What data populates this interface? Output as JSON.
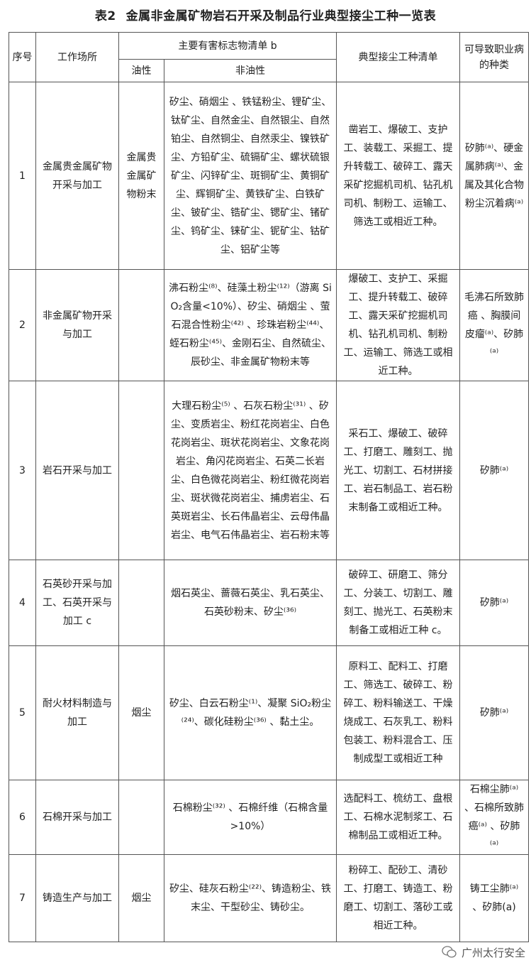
{
  "title": {
    "number": "表2",
    "text": "金属非金属矿物岩石开采及制品行业典型接尘工种一览表"
  },
  "headers": {
    "seq": "序号",
    "workplace": "工作场所",
    "markers": "主要有害标志物清单 b",
    "oily": "油性",
    "non_oily": "非油性",
    "jobs": "典型接尘工种清单",
    "diseases": "可导致职业病的种类"
  },
  "rows": [
    {
      "seq": "1",
      "workplace": "金属贵金属矿物开采与加工",
      "oily": "金属贵金属矿物粉末",
      "non_oily": "矽尘、硝烟尘 、铁锰粉尘、锂矿尘、钛矿尘、自然金尘、自然银尘、自然铂尘、自然铜尘、自然汞尘、镍铁矿尘、方铅矿尘、硫镉矿尘、螺状硫银矿尘、闪锌矿尘、斑铜矿尘、黄铜矿尘、辉铜矿尘、黄铁矿尘、白铁矿尘、铍矿尘、锆矿尘、锶矿尘、锗矿尘、钨矿尘、铼矿尘、铌矿尘、钴矿尘、铝矿尘等",
      "jobs": "凿岩工、爆破工、支护工、装载工、采掘工、提升转载工、破碎工、露天采矿挖掘机司机、钻孔机司机、制粉工、运输工、筛选工或相近工种。",
      "diseases": "矽肺⁽ᵃ⁾、硬金属肺病⁽ᵃ⁾、金属及其化合物粉尘沉着病⁽ᵃ⁾"
    },
    {
      "seq": "2",
      "workplace": "非金属矿物开采与加工",
      "oily": "",
      "non_oily": "沸石粉尘⁽⁸⁾、硅藻土粉尘⁽¹²⁾（游离 SiO₂含量<10%）、矽尘、硝烟尘 、萤石混合性粉尘⁽⁴²⁾ 、珍珠岩粉尘⁽⁴⁴⁾、蛭石粉尘⁽⁴⁵⁾、金刚石尘、自然硫尘、辰砂尘、非金属矿物粉末等",
      "jobs": "爆破工、支护工、采掘工、提升转载工、破碎工、露天采矿挖掘机司机、钻孔机司机、制粉工、运输工、筛选工或相近工种。",
      "diseases": "毛沸石所致肺癌 、胸膜间皮瘤⁽ᵃ⁾、矽肺⁽ᵃ⁾"
    },
    {
      "seq": "3",
      "workplace": "岩石开采与加工",
      "oily": "",
      "non_oily": "大理石粉尘⁽⁵⁾ 、石灰石粉尘⁽³¹⁾ 、矽尘、变质岩尘、粉红花岗岩尘、白色花岗岩尘、斑状花岗岩尘、文象花岗岩尘、角闪花岗岩尘、石英二长岩尘、白色微花岗岩尘、粉红微花岗岩尘、斑状微花岗岩尘、捕虏岩尘、石英斑岩尘、长石伟晶岩尘、云母伟晶岩尘、电气石伟晶岩尘、岩石粉末等",
      "jobs": "采石工、爆破工、破碎工、打磨工、雕刻工、抛光工、切割工、石材拼接工、岩石制品工、岩石粉末制备工或相近工种。",
      "diseases": "矽肺⁽ᵃ⁾"
    },
    {
      "seq": "4",
      "workplace": "石英砂开采与加工、石英开采与加工 c",
      "oily": "",
      "non_oily": "烟石英尘、蔷薇石英尘、乳石英尘、石英砂粉末、矽尘⁽³⁶⁾",
      "jobs": "破碎工、研磨工、筛分工、分装工、切割工、雕刻工、抛光工、石英粉末制备工或相近工种 c。",
      "diseases": "矽肺⁽ᵃ⁾"
    },
    {
      "seq": "5",
      "workplace": "耐火材料制造与加工",
      "oily": "烟尘",
      "non_oily": "矽尘、白云石粉尘⁽¹⁾、凝聚 SiO₂粉尘⁽²⁴⁾、碳化硅粉尘⁽³⁶⁾ 、黏土尘。",
      "jobs": "原料工、配料工、打磨工、筛选工、破碎工、粉碎工、粉料输送工、干燥烧成工、石灰乳工、粉料包装工、粉料混合工、压制成型工或相近工种",
      "diseases": "矽肺⁽ᵃ⁾"
    },
    {
      "seq": "6",
      "workplace": "石棉开采与加工",
      "oily": "",
      "non_oily": "石棉粉尘⁽³²⁾ 、石棉纤维（石棉含量>10%）",
      "jobs": "选配料工、梳纺工、盘根工、石棉水泥制浆工、石棉制品工或相近工种。",
      "diseases": "石棉尘肺⁽ᵃ⁾ 、石棉所致肺癌⁽ᵃ⁾ 、矽肺⁽ᵃ⁾"
    },
    {
      "seq": "7",
      "workplace": "铸造生产与加工",
      "oily": "烟尘",
      "non_oily": "矽尘、硅灰石粉尘⁽²²⁾、铸造粉尘、铁末尘、干型砂尘、铸砂尘。",
      "jobs": "粉碎工、配砂工、清砂工、打磨工、铸造工、粉磨工、切割工、落砂工或相近工种。",
      "diseases": "铸工尘肺⁽ᵃ⁾ 、矽肺(a)"
    }
  ],
  "watermark": {
    "text": "广州太行安全",
    "icon": "wechat-icon"
  }
}
